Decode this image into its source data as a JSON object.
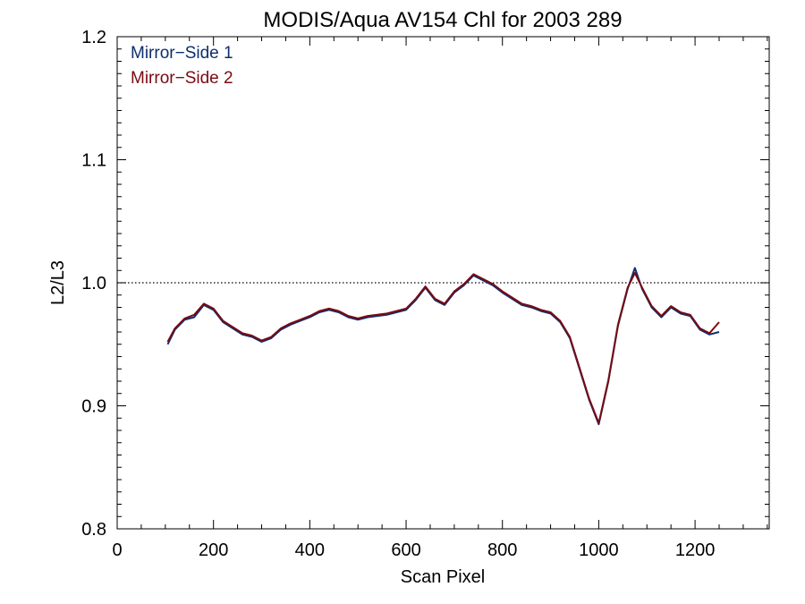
{
  "chart_data": {
    "type": "line",
    "title": "MODIS/Aqua AV154 Chl for 2003 289",
    "xlabel": "Scan Pixel",
    "ylabel": "L2/L3",
    "xlim": [
      0,
      1354
    ],
    "ylim": [
      0.8,
      1.2
    ],
    "x_ticks": [
      "0",
      "200",
      "400",
      "600",
      "800",
      "1000",
      "1200"
    ],
    "y_ticks": [
      "0.8",
      "0.9",
      "1.0",
      "1.1",
      "1.2"
    ],
    "reference_line": {
      "y": 1.0,
      "style": "dotted"
    },
    "legend": {
      "placement": "top-left",
      "entries": [
        {
          "label": "Mirror−Side 1",
          "color": "#0d2f6e"
        },
        {
          "label": "Mirror−Side 2",
          "color": "#7a0a12"
        }
      ]
    },
    "x": [
      105,
      120,
      140,
      160,
      180,
      200,
      220,
      240,
      260,
      280,
      300,
      320,
      340,
      360,
      380,
      400,
      420,
      440,
      460,
      480,
      500,
      520,
      540,
      560,
      580,
      600,
      620,
      640,
      660,
      680,
      700,
      720,
      740,
      760,
      780,
      800,
      820,
      840,
      860,
      880,
      900,
      920,
      940,
      960,
      980,
      1000,
      1020,
      1040,
      1060,
      1075,
      1090,
      1110,
      1130,
      1150,
      1170,
      1190,
      1210,
      1230,
      1250
    ],
    "series": [
      {
        "group": 1,
        "values": [
          0.95,
          0.962,
          0.97,
          0.972,
          0.982,
          0.978,
          0.968,
          0.963,
          0.958,
          0.956,
          0.952,
          0.955,
          0.962,
          0.966,
          0.969,
          0.972,
          0.976,
          0.978,
          0.976,
          0.972,
          0.97,
          0.972,
          0.973,
          0.974,
          0.976,
          0.978,
          0.986,
          0.996,
          0.986,
          0.982,
          0.992,
          0.998,
          1.006,
          1.002,
          0.998,
          0.992,
          0.987,
          0.982,
          0.98,
          0.977,
          0.975,
          0.968,
          0.955,
          0.93,
          0.905,
          0.885,
          0.92,
          0.965,
          0.995,
          1.012,
          0.995,
          0.98,
          0.972,
          0.98,
          0.975,
          0.973,
          0.962,
          0.958,
          0.96
        ]
      },
      {
        "group": 2,
        "values": [
          0.952,
          0.963,
          0.971,
          0.974,
          0.983,
          0.979,
          0.969,
          0.964,
          0.959,
          0.957,
          0.953,
          0.956,
          0.963,
          0.967,
          0.97,
          0.973,
          0.977,
          0.979,
          0.977,
          0.973,
          0.971,
          0.973,
          0.974,
          0.975,
          0.977,
          0.979,
          0.987,
          0.997,
          0.987,
          0.983,
          0.993,
          0.999,
          1.007,
          1.003,
          0.999,
          0.993,
          0.988,
          0.983,
          0.981,
          0.978,
          0.976,
          0.969,
          0.956,
          0.931,
          0.906,
          0.886,
          0.921,
          0.966,
          0.996,
          1.008,
          0.996,
          0.981,
          0.973,
          0.981,
          0.976,
          0.974,
          0.963,
          0.959,
          0.968
        ]
      }
    ]
  }
}
